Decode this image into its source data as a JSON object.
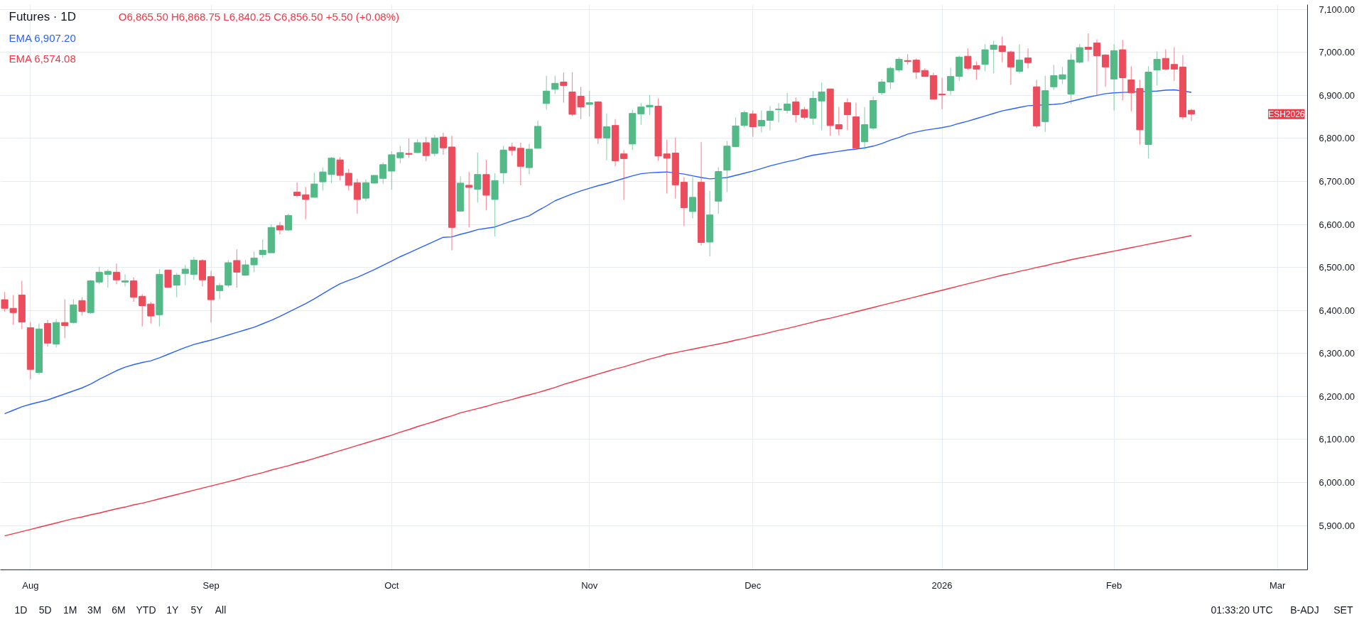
{
  "chart_data": {
    "type": "candlestick",
    "title": "Futures · 1D",
    "categories": [
      null,
      null,
      null,
      "Aug",
      null,
      null,
      null,
      null,
      null,
      null,
      null,
      null,
      null,
      null,
      null,
      null,
      null,
      null,
      null,
      null,
      null,
      null,
      null,
      null,
      "Sep",
      null,
      null,
      null,
      null,
      null,
      null,
      null,
      null,
      null,
      null,
      null,
      null,
      null,
      null,
      null,
      null,
      null,
      null,
      null,
      null,
      "Oct",
      null,
      null,
      null,
      null,
      null,
      null,
      null,
      null,
      null,
      null,
      null,
      null,
      null,
      null,
      null,
      null,
      null,
      null,
      null,
      null,
      null,
      null,
      "Nov",
      null,
      null,
      null,
      null,
      null,
      null,
      null,
      null,
      null,
      null,
      null,
      null,
      null,
      null,
      null,
      null,
      null,
      null,
      "Dec",
      null,
      null,
      null,
      null,
      null,
      null,
      null,
      null,
      null,
      null,
      null,
      null,
      null,
      null,
      null,
      null,
      null,
      null,
      null,
      null,
      null,
      "2026",
      null,
      null,
      null,
      null,
      null,
      null,
      null,
      null,
      null,
      null,
      null,
      null,
      null,
      null,
      null,
      null,
      null,
      null,
      null,
      "Feb",
      null,
      null,
      null,
      null,
      null,
      null,
      null,
      null,
      null,
      null,
      null,
      null,
      null,
      null,
      null,
      null,
      null,
      null,
      "Mar",
      null,
      null,
      null
    ],
    "ohlc": [
      [
        6425,
        6443,
        6397,
        6405
      ],
      [
        6405,
        6436,
        6367,
        6395
      ],
      [
        6436,
        6469,
        6357,
        6373
      ],
      [
        6360,
        6373,
        6240,
        6263
      ],
      [
        6256,
        6370,
        6251,
        6357
      ],
      [
        6370,
        6378,
        6316,
        6324
      ],
      [
        6322,
        6380,
        6314,
        6372
      ],
      [
        6372,
        6426,
        6335,
        6365
      ],
      [
        6372,
        6426,
        6370,
        6413
      ],
      [
        6423,
        6431,
        6388,
        6398
      ],
      [
        6395,
        6471,
        6392,
        6469
      ],
      [
        6466,
        6502,
        6461,
        6489
      ],
      [
        6484,
        6496,
        6453,
        6491
      ],
      [
        6489,
        6509,
        6461,
        6471
      ],
      [
        6466,
        6484,
        6456,
        6469
      ],
      [
        6469,
        6477,
        6420,
        6431
      ],
      [
        6433,
        6438,
        6363,
        6411
      ],
      [
        6415,
        6420,
        6370,
        6387
      ],
      [
        6390,
        6496,
        6363,
        6484
      ],
      [
        6494,
        6495,
        6453,
        6454
      ],
      [
        6459,
        6487,
        6431,
        6482
      ],
      [
        6486,
        6506,
        6459,
        6496
      ],
      [
        6484,
        6524,
        6471,
        6517
      ],
      [
        6516,
        6519,
        6456,
        6471
      ],
      [
        6479,
        6492,
        6372,
        6425
      ],
      [
        6446,
        6464,
        6426,
        6458
      ],
      [
        6459,
        6517,
        6454,
        6511
      ],
      [
        6516,
        6542,
        6453,
        6489
      ],
      [
        6482,
        6517,
        6481,
        6506
      ],
      [
        6506,
        6537,
        6489,
        6522
      ],
      [
        6530,
        6565,
        6522,
        6540
      ],
      [
        6534,
        6600,
        6534,
        6593
      ],
      [
        6597,
        6606,
        6577,
        6587
      ],
      [
        6587,
        6625,
        6585,
        6621
      ],
      [
        6675,
        6698,
        6663,
        6667
      ],
      [
        6669,
        6687,
        6612,
        6658
      ],
      [
        6663,
        6720,
        6663,
        6694
      ],
      [
        6699,
        6732,
        6679,
        6722
      ],
      [
        6716,
        6757,
        6696,
        6754
      ],
      [
        6750,
        6757,
        6702,
        6714
      ],
      [
        6719,
        6729,
        6679,
        6691
      ],
      [
        6697,
        6706,
        6625,
        6658
      ],
      [
        6661,
        6704,
        6654,
        6697
      ],
      [
        6696,
        6714,
        6695,
        6714
      ],
      [
        6707,
        6744,
        6694,
        6739
      ],
      [
        6724,
        6770,
        6681,
        6762
      ],
      [
        6755,
        6783,
        6742,
        6767
      ],
      [
        6765,
        6800,
        6755,
        6763
      ],
      [
        6767,
        6798,
        6766,
        6790
      ],
      [
        6790,
        6803,
        6747,
        6760
      ],
      [
        6765,
        6808,
        6758,
        6801
      ],
      [
        6803,
        6813,
        6762,
        6778
      ],
      [
        6780,
        6806,
        6540,
        6593
      ],
      [
        6631,
        6712,
        6631,
        6696
      ],
      [
        6691,
        6722,
        6593,
        6686
      ],
      [
        6682,
        6767,
        6651,
        6716
      ],
      [
        6716,
        6750,
        6633,
        6668
      ],
      [
        6658,
        6719,
        6572,
        6702
      ],
      [
        6720,
        6783,
        6694,
        6773
      ],
      [
        6780,
        6790,
        6760,
        6772
      ],
      [
        6777,
        6790,
        6691,
        6735
      ],
      [
        6732,
        6787,
        6717,
        6775
      ],
      [
        6777,
        6841,
        6776,
        6828
      ],
      [
        6881,
        6946,
        6867,
        6910
      ],
      [
        6914,
        6946,
        6903,
        6928
      ],
      [
        6931,
        6953,
        6883,
        6923
      ],
      [
        6908,
        6954,
        6852,
        6856
      ],
      [
        6898,
        6920,
        6845,
        6873
      ],
      [
        6879,
        6911,
        6851,
        6883
      ],
      [
        6885,
        6886,
        6787,
        6801
      ],
      [
        6801,
        6858,
        6749,
        6827
      ],
      [
        6830,
        6845,
        6735,
        6748
      ],
      [
        6764,
        6773,
        6657,
        6753
      ],
      [
        6787,
        6867,
        6773,
        6858
      ],
      [
        6857,
        6882,
        6832,
        6873
      ],
      [
        6873,
        6901,
        6854,
        6877
      ],
      [
        6875,
        6893,
        6748,
        6759
      ],
      [
        6764,
        6797,
        6672,
        6754
      ],
      [
        6766,
        6802,
        6660,
        6692
      ],
      [
        6698,
        6710,
        6596,
        6639
      ],
      [
        6630,
        6710,
        6614,
        6663
      ],
      [
        6698,
        6792,
        6551,
        6558
      ],
      [
        6559,
        6678,
        6526,
        6622
      ],
      [
        6654,
        6733,
        6625,
        6723
      ],
      [
        6726,
        6794,
        6675,
        6782
      ],
      [
        6781,
        6849,
        6779,
        6829
      ],
      [
        6830,
        6865,
        6825,
        6860
      ],
      [
        6857,
        6865,
        6804,
        6827
      ],
      [
        6829,
        6865,
        6814,
        6842
      ],
      [
        6842,
        6875,
        6819,
        6863
      ],
      [
        6867,
        6882,
        6837,
        6868
      ],
      [
        6865,
        6906,
        6858,
        6880
      ],
      [
        6885,
        6895,
        6837,
        6855
      ],
      [
        6867,
        6873,
        6845,
        6849
      ],
      [
        6847,
        6910,
        6832,
        6893
      ],
      [
        6887,
        6930,
        6819,
        6908
      ],
      [
        6915,
        6916,
        6806,
        6830
      ],
      [
        6832,
        6873,
        6807,
        6822
      ],
      [
        6883,
        6893,
        6819,
        6855
      ],
      [
        6850,
        6883,
        6777,
        6777
      ],
      [
        6792,
        6873,
        6774,
        6832
      ],
      [
        6824,
        6897,
        6820,
        6888
      ],
      [
        6906,
        6938,
        6901,
        6931
      ],
      [
        6931,
        6966,
        6915,
        6963
      ],
      [
        6959,
        6989,
        6954,
        6984
      ],
      [
        6981,
        6996,
        6971,
        6979
      ],
      [
        6982,
        6986,
        6938,
        6954
      ],
      [
        6958,
        6963,
        6943,
        6944
      ],
      [
        6946,
        6953,
        6891,
        6891
      ],
      [
        6903,
        6941,
        6868,
        6901
      ],
      [
        6911,
        6964,
        6901,
        6944
      ],
      [
        6944,
        6992,
        6933,
        6989
      ],
      [
        6991,
        7009,
        6959,
        6963
      ],
      [
        6969,
        6979,
        6936,
        6961
      ],
      [
        6972,
        7019,
        6956,
        7006
      ],
      [
        7007,
        7027,
        6951,
        7017
      ],
      [
        7015,
        7037,
        6977,
        7002
      ],
      [
        7001,
        7004,
        6925,
        6966
      ],
      [
        6956,
        7019,
        6951,
        6982
      ],
      [
        6987,
        7009,
        6963,
        6976
      ],
      [
        6920,
        6936,
        6824,
        6829
      ],
      [
        6839,
        6946,
        6815,
        6911
      ],
      [
        6920,
        6971,
        6913,
        6946
      ],
      [
        6938,
        6966,
        6926,
        6948
      ],
      [
        6903,
        6997,
        6880,
        6982
      ],
      [
        6977,
        7020,
        6974,
        7011
      ],
      [
        7012,
        7044,
        6979,
        7007
      ],
      [
        7022,
        7030,
        6901,
        6992
      ],
      [
        6994,
        6996,
        6920,
        6966
      ],
      [
        6938,
        7019,
        6865,
        7004
      ],
      [
        7006,
        7029,
        6888,
        6941
      ],
      [
        6936,
        6968,
        6863,
        6906
      ],
      [
        6916,
        6936,
        6786,
        6820
      ],
      [
        6786,
        6968,
        6753,
        6954
      ],
      [
        6959,
        7002,
        6923,
        6984
      ],
      [
        6986,
        7007,
        6958,
        6961
      ],
      [
        6972,
        7012,
        6933,
        6961
      ],
      [
        6966,
        6994,
        6844,
        6850
      ],
      [
        6865.5,
        6868.75,
        6840.25,
        6856.5
      ],
      null,
      null,
      null,
      null,
      null,
      null,
      null,
      null,
      null,
      null,
      null,
      null,
      null
    ],
    "colors": [
      "#eb4d5c",
      "#eb4d5c",
      "#eb4d5c",
      "#eb4d5c",
      "#52b987",
      "#eb4d5c",
      "#52b987",
      "#eb4d5c",
      "#52b987",
      "#eb4d5c",
      "#52b987",
      "#52b987",
      "#52b987",
      "#eb4d5c",
      "#52b987",
      "#eb4d5c",
      "#eb4d5c",
      "#eb4d5c",
      "#52b987",
      "#eb4d5c",
      "#52b987",
      "#52b987",
      "#52b987",
      "#eb4d5c",
      "#eb4d5c",
      "#52b987",
      "#52b987",
      "#eb4d5c",
      "#52b987",
      "#52b987",
      "#52b987",
      "#52b987",
      "#eb4d5c",
      "#52b987",
      "#eb4d5c",
      "#eb4d5c",
      "#52b987",
      "#52b987",
      "#52b987",
      "#eb4d5c",
      "#eb4d5c",
      "#eb4d5c",
      "#52b987",
      "#52b987",
      "#52b987",
      "#52b987",
      "#52b987",
      "#eb4d5c",
      "#52b987",
      "#eb4d5c",
      "#52b987",
      "#eb4d5c",
      "#eb4d5c",
      "#52b987",
      "#eb4d5c",
      "#52b987",
      "#eb4d5c",
      "#52b987",
      "#52b987",
      "#eb4d5c",
      "#eb4d5c",
      "#52b987",
      "#52b987",
      "#52b987",
      "#52b987",
      "#eb4d5c",
      "#eb4d5c",
      "#eb4d5c",
      "#52b987",
      "#eb4d5c",
      "#52b987",
      "#eb4d5c",
      "#eb4d5c",
      "#52b987",
      "#52b987",
      "#52b987",
      "#eb4d5c",
      "#eb4d5c",
      "#eb4d5c",
      "#eb4d5c",
      "#52b987",
      "#eb4d5c",
      "#52b987",
      "#52b987",
      "#52b987",
      "#52b987",
      "#52b987",
      "#eb4d5c",
      "#52b987",
      "#52b987",
      "#52b987",
      "#52b987",
      "#eb4d5c",
      "#eb4d5c",
      "#52b987",
      "#52b987",
      "#eb4d5c",
      "#eb4d5c",
      "#eb4d5c",
      "#eb4d5c",
      "#52b987",
      "#52b987",
      "#52b987",
      "#52b987",
      "#52b987",
      "#eb4d5c",
      "#eb4d5c",
      "#eb4d5c",
      "#eb4d5c",
      "#eb4d5c",
      "#52b987",
      "#52b987",
      "#eb4d5c",
      "#eb4d5c",
      "#52b987",
      "#52b987",
      "#eb4d5c",
      "#eb4d5c",
      "#52b987",
      "#eb4d5c",
      "#eb4d5c",
      "#52b987",
      "#52b987",
      "#52b987",
      "#52b987",
      "#52b987",
      "#eb4d5c",
      "#eb4d5c",
      "#eb4d5c",
      "#52b987",
      "#eb4d5c",
      "#eb4d5c",
      "#eb4d5c",
      "#52b987",
      "#52b987",
      "#eb4d5c",
      "#eb4d5c",
      "#eb4d5c",
      "#eb4d5c",
      null,
      null,
      null,
      null,
      null,
      null,
      null,
      null,
      null,
      null,
      null,
      null,
      null
    ],
    "series": [
      {
        "type": "line",
        "name": "EMA 6,907.20",
        "color": "#2962ff",
        "values": [
          6160,
          6168,
          6176,
          6182,
          6187,
          6192,
          6199,
          6206,
          6213,
          6220,
          6229,
          6240,
          6250,
          6260,
          6268,
          6274,
          6279,
          6283,
          6290,
          6298,
          6306,
          6314,
          6321,
          6326,
          6331,
          6337,
          6343,
          6349,
          6355,
          6361,
          6369,
          6377,
          6386,
          6396,
          6406,
          6416,
          6427,
          6439,
          6451,
          6462,
          6470,
          6477,
          6486,
          6495,
          6505,
          6515,
          6525,
          6534,
          6543,
          6552,
          6561,
          6570,
          6571,
          6577,
          6582,
          6588,
          6591,
          6594,
          6601,
          6608,
          6614,
          6620,
          6632,
          6643,
          6655,
          6663,
          6671,
          6678,
          6684,
          6690,
          6695,
          6701,
          6707,
          6713,
          6718,
          6720,
          6721,
          6722,
          null,
          6717,
          6713,
          6709,
          6706,
          null,
          6709,
          6714,
          6719,
          6724,
          6730,
          6736,
          6741,
          6746,
          6750,
          6756,
          6761,
          6764,
          6767,
          6770,
          6773,
          6775,
          6778,
          6782,
          6788,
          6796,
          6802,
          6810,
          6815,
          6819,
          6822,
          6825,
          6829,
          6835,
          6840,
          6846,
          6852,
          6858,
          6864,
          6868,
          6872,
          6876,
          null,
          null,
          6879,
          6881,
          6886,
          6891,
          6896,
          6900,
          6904,
          6906,
          6907,
          null,
          null,
          null,
          6910,
          6912,
          6913,
          null,
          6907.2,
          null,
          null,
          null,
          null,
          null,
          null,
          null,
          null,
          null,
          null,
          null,
          null,
          null
        ]
      },
      {
        "type": "line",
        "name": "EMA 6,574.08",
        "color": "#f23645",
        "values": [
          5876,
          5881,
          5886,
          5891,
          5896,
          5901,
          5906,
          5911,
          5916,
          5920,
          5925,
          5929,
          5934,
          5939,
          5943,
          5948,
          5952,
          5957,
          5962,
          5967,
          5972,
          5977,
          5982,
          5987,
          5992,
          5997,
          6002,
          6007,
          6013,
          6018,
          6023,
          6029,
          6034,
          6039,
          6045,
          6050,
          6056,
          6062,
          6068,
          6074,
          6080,
          6086,
          6092,
          6098,
          6104,
          6110,
          6117,
          6123,
          6130,
          6136,
          6142,
          6149,
          6155,
          6162,
          6167,
          6172,
          6177,
          6183,
          6188,
          6193,
          6199,
          6204,
          6209,
          6215,
          6221,
          6228,
          6234,
          6240,
          6246,
          6252,
          6258,
          6264,
          6269,
          6275,
          6281,
          6287,
          6292,
          6298,
          6302,
          6306,
          6310,
          6314,
          6318,
          6322,
          6326,
          6331,
          6335,
          6340,
          6344,
          6349,
          6354,
          6358,
          6363,
          6368,
          6373,
          6378,
          6382,
          6387,
          6392,
          6397,
          6402,
          6407,
          6412,
          6417,
          6422,
          6427,
          6432,
          6437,
          6442,
          6447,
          6452,
          6457,
          6462,
          6467,
          6472,
          6477,
          6482,
          6486,
          6491,
          6495,
          6500,
          6504,
          6509,
          6513,
          6518,
          6522,
          6526,
          6530,
          6534,
          6538,
          6542,
          6546,
          6550,
          6554,
          6558,
          6562,
          6566,
          6570,
          6574.08,
          null,
          null,
          null,
          null,
          null,
          null,
          null,
          null,
          null,
          null,
          null,
          null,
          null
        ]
      }
    ],
    "ylim": [
      5797,
      7111
    ],
    "yticks": [
      {
        "value": 5900,
        "label": "5,900.00"
      },
      {
        "value": 6000,
        "label": "6,000.00"
      },
      {
        "value": 6100,
        "label": "6,100.00"
      },
      {
        "value": 6200,
        "label": "6,200.00"
      },
      {
        "value": 6300,
        "label": "6,300.00"
      },
      {
        "value": 6400,
        "label": "6,400.00"
      },
      {
        "value": 6500,
        "label": "6,500.00"
      },
      {
        "value": 6600,
        "label": "6,600.00"
      },
      {
        "value": 6700,
        "label": "6,700.00"
      },
      {
        "value": 6800,
        "label": "6,800.00"
      },
      {
        "value": 6900,
        "label": "6,900.00"
      },
      {
        "value": 7000,
        "label": "7,000.00"
      },
      {
        "value": 7100,
        "label": "7,100.00"
      }
    ],
    "grid": true,
    "legend": "top left",
    "annotations": [
      "O6,865.50 H6,868.75 L6,840.25 C6,856.50 +5.50 (+0.08%)",
      "1D",
      "5D",
      "1M",
      "3M",
      "6M",
      "YTD",
      "1Y",
      "5Y",
      "All",
      "01:33:20 UTC",
      "B-ADJ",
      "SET",
      "ESH2026"
    ]
  }
}
